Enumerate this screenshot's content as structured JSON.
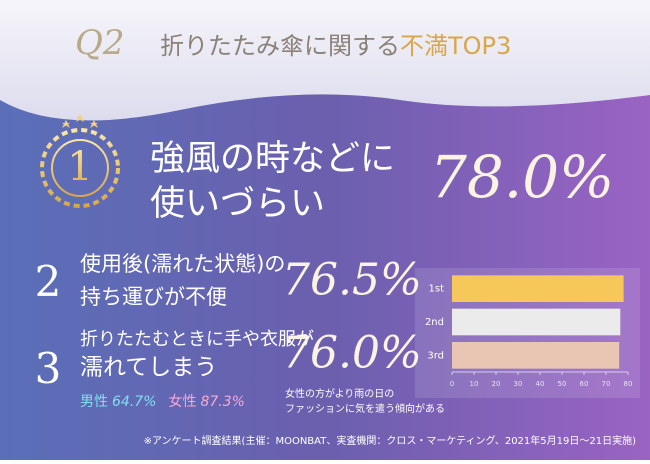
{
  "header": {
    "q": "Q2",
    "title_main": "折りたたみ傘に関する",
    "title_accent": "不満TOP3"
  },
  "ranks": [
    {
      "rank": "1",
      "lines": [
        "強風の時などに",
        "使いづらい"
      ]
    },
    {
      "rank": "2",
      "lines": [
        "使用後(濡れた状態)の",
        "持ち運びが不便"
      ]
    },
    {
      "rank": "3",
      "lines": [
        "折りたたむときに手や衣服が",
        "濡れてしまう"
      ],
      "male": "男性",
      "male_value": "64.7%",
      "female": "女性",
      "female_value": "87.3%",
      "note": [
        "女性の方がより雨の日の",
        "ファッションに気を遣う傾向がある"
      ]
    }
  ],
  "footnote": "※アンケート調査結果(主催：MOONBAT、実査機関：クロス・マーケティング、2021年5月19日〜21日実施)",
  "chart_data": {
    "type": "bar",
    "orientation": "horizontal",
    "categories": [
      "1st",
      "2nd",
      "3rd"
    ],
    "values": [
      78.0,
      76.5,
      76.0
    ],
    "value_labels": [
      "78.0%",
      "76.5%",
      "76.0%"
    ],
    "colors": [
      "#f6c85a",
      "#ebebeb",
      "#e9c6b4"
    ],
    "xlim": [
      0,
      80
    ],
    "xticks": [
      0,
      10,
      20,
      30,
      40,
      50,
      60,
      70,
      80
    ]
  }
}
